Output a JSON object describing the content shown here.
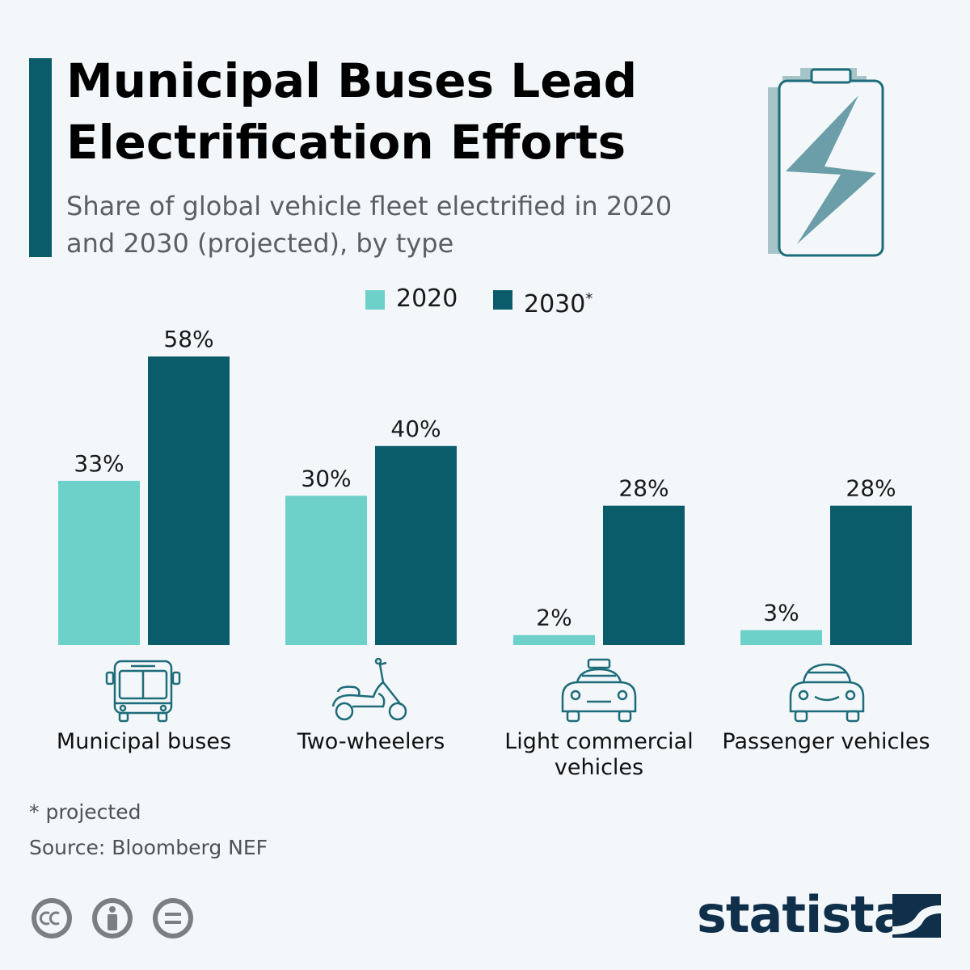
{
  "header": {
    "title": "Municipal Buses Lead Electrification Efforts",
    "subtitle": "Share of global vehicle fleet electrified in 2020 and 2030 (projected), by type"
  },
  "legend": {
    "items": [
      {
        "label": "2020",
        "marker": "",
        "color": "#6dd0c9"
      },
      {
        "label": "2030",
        "marker": "*",
        "color": "#0b5c6b"
      }
    ]
  },
  "chart_data": {
    "type": "bar",
    "categories": [
      "Municipal buses",
      "Two-wheelers",
      "Light commercial vehicles",
      "Passenger vehicles"
    ],
    "series": [
      {
        "name": "2020",
        "values": [
          33,
          30,
          2,
          3
        ],
        "labels": [
          "33%",
          "30%",
          "2%",
          "3%"
        ],
        "color": "#6dd0c9"
      },
      {
        "name": "2030*",
        "values": [
          58,
          40,
          28,
          28
        ],
        "labels": [
          "58%",
          "40%",
          "28%",
          "28%"
        ],
        "color": "#0b5c6b"
      }
    ],
    "unit": "%",
    "ylim": [
      0,
      58
    ],
    "grid": false,
    "legend_position": "top-center"
  },
  "categories": [
    {
      "label": "Municipal buses",
      "icon": "bus-icon"
    },
    {
      "label": "Two-wheelers",
      "icon": "scooter-icon"
    },
    {
      "label": "Light commercial vehicles",
      "icon": "taxi-icon"
    },
    {
      "label": "Passenger vehicles",
      "icon": "car-icon"
    }
  ],
  "footer": {
    "footnote": "* projected",
    "source": "Source: Bloomberg NEF",
    "license_icons": [
      "cc-icon",
      "attribution-icon",
      "no-derivatives-icon"
    ],
    "brand": "statista",
    "brand_icon": "statista-logo-icon"
  },
  "colors": {
    "accent": "#0b5c6b",
    "series_2020": "#6dd0c9",
    "series_2030": "#0b5c6b",
    "icon_stroke": "#1e6c7a",
    "brand": "#0f2f4a",
    "background": "#f3f7fa"
  }
}
